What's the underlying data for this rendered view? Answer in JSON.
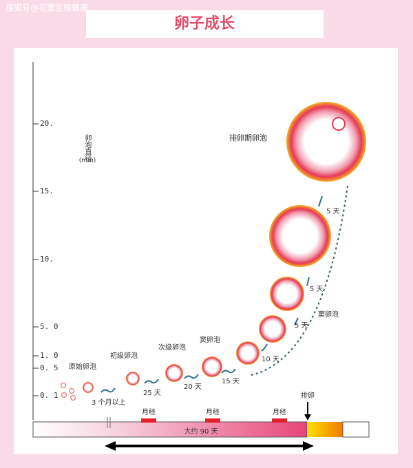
{
  "watermark": "搜狐号@花蕾生殖健康",
  "title": "卵子成长",
  "axis": {
    "label": "卵泡直径",
    "unit": "(mm)",
    "ticks": [
      "20.",
      "15.",
      "10.",
      "5. 0",
      "1. 0",
      "0. 5",
      "0. 1"
    ]
  },
  "stages": [
    "原始卵泡",
    "初级卵泡",
    "次级卵泡",
    "窦卵泡",
    "窦卵泡",
    "排卵期卵泡"
  ],
  "intervals": [
    "3 个月以上",
    "25 天",
    "20 天",
    "15 天",
    "10 天",
    "5 天",
    "5 天",
    "5 天"
  ],
  "timeline": {
    "menstruation": [
      "月经",
      "月经",
      "月经"
    ],
    "duration": "大约 90 天",
    "ovulation": "排卵"
  }
}
